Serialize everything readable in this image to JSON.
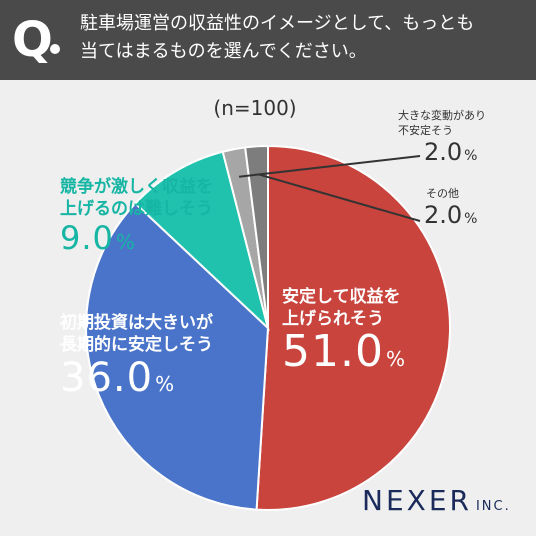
{
  "question": {
    "mark": "Q",
    "line1": "駐車場運営の収益性のイメージとして、もっとも",
    "line2": "当てはまるものを選んでください。"
  },
  "n_label": "(n=100)",
  "chart_data": {
    "type": "pie",
    "slices": [
      {
        "label": "安定して収益を上げられそう",
        "label_lines": [
          "安定して収益を",
          "上げられそう"
        ],
        "value": 51.0,
        "display": "51.0",
        "color": "#c8443d"
      },
      {
        "label": "初期投資は大きいが長期的に安定しそう",
        "label_lines": [
          "初期投資は大きいが",
          "長期的に安定しそう"
        ],
        "value": 36.0,
        "display": "36.0",
        "color": "#4a74c9"
      },
      {
        "label": "競争が激しく収益を上げるのは難しそう",
        "label_lines": [
          "競争が激しく収益を",
          "上げるのは難しそう"
        ],
        "value": 9.0,
        "display": "9.0",
        "color": "#20c2ae"
      },
      {
        "label": "大きな変動があり不安定そう",
        "label_lines": [
          "大きな変動があり",
          "不安定そう"
        ],
        "value": 2.0,
        "display": "2.0",
        "color": "#a6a6a6"
      },
      {
        "label": "その他",
        "label_lines": [
          "その他"
        ],
        "value": 2.0,
        "display": "2.0",
        "color": "#7d7d7d"
      }
    ],
    "unit": "%",
    "start": "12 o'clock",
    "direction": "clockwise"
  },
  "logo": {
    "main": "NEXER",
    "suffix": "INC."
  }
}
